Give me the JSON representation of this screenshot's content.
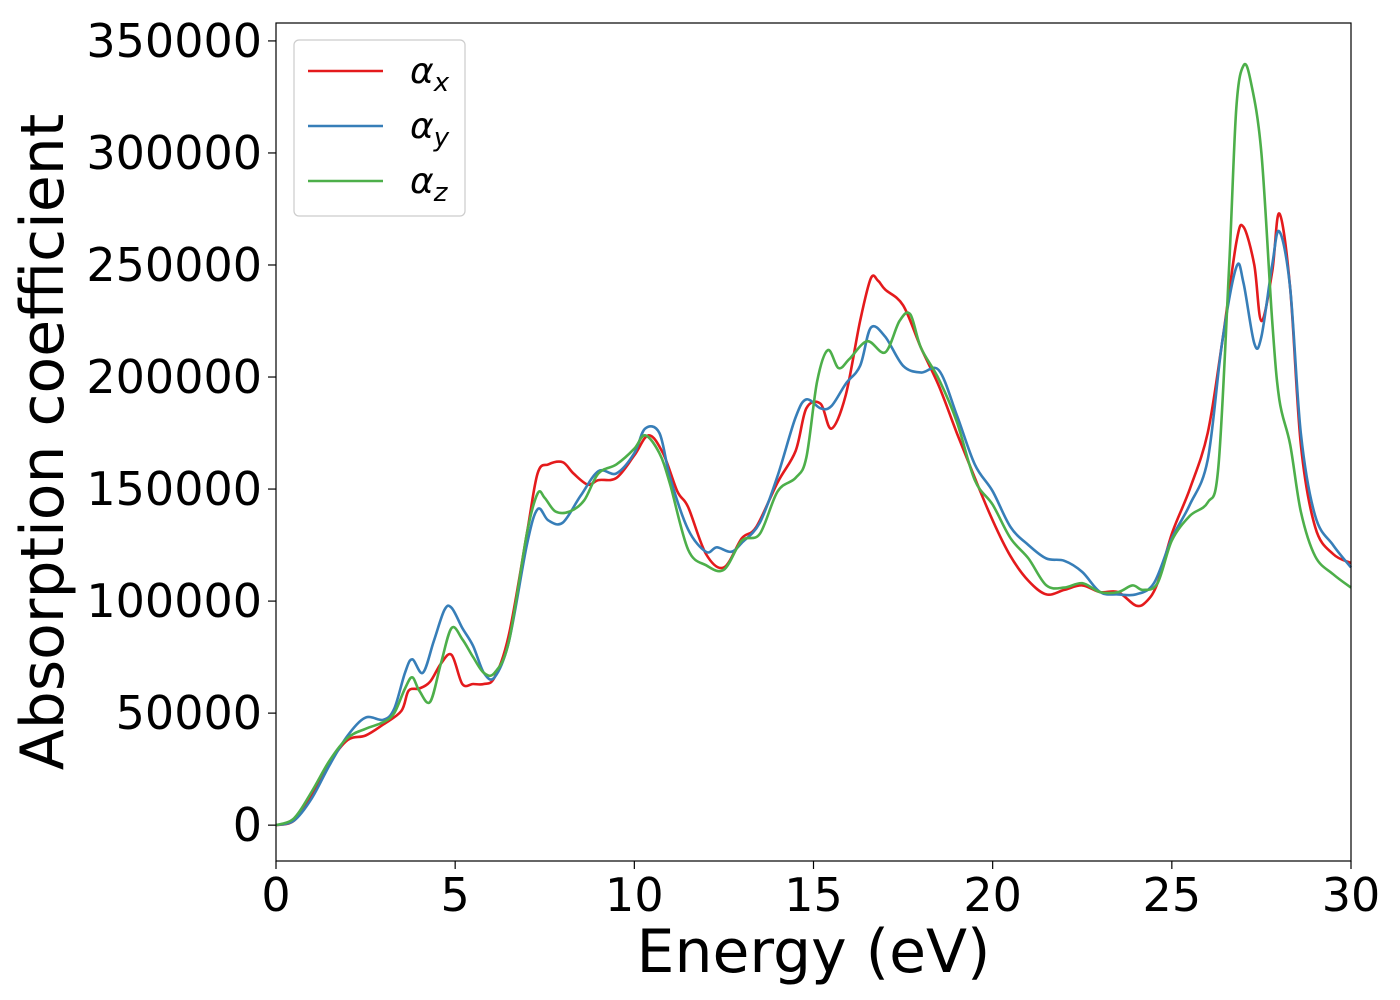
{
  "chart_data": {
    "type": "line",
    "xlabel": "Energy (eV)",
    "ylabel": "Absorption coefficient",
    "xlim": [
      0,
      30
    ],
    "ylim": [
      -16000,
      358000
    ],
    "xticks": [
      0,
      5,
      10,
      15,
      20,
      25,
      30
    ],
    "yticks": [
      0,
      50000,
      100000,
      150000,
      200000,
      250000,
      300000,
      350000
    ],
    "grid": false,
    "legend_position": "top-left",
    "series": [
      {
        "name": "α_x",
        "symbol": "α",
        "subscript": "x",
        "color": "#e41a1c",
        "x": [
          0,
          0.5,
          1.0,
          1.5,
          2.0,
          2.5,
          3.0,
          3.5,
          3.7,
          4.0,
          4.3,
          4.6,
          4.9,
          5.2,
          5.5,
          5.8,
          6.1,
          6.5,
          7.0,
          7.3,
          7.6,
          8.0,
          8.3,
          8.7,
          9.0,
          9.5,
          10.0,
          10.4,
          10.8,
          11.2,
          11.5,
          12.0,
          12.5,
          13.0,
          13.4,
          14.0,
          14.5,
          14.8,
          15.2,
          15.5,
          15.9,
          16.3,
          16.6,
          16.8,
          17.0,
          17.5,
          18.0,
          18.5,
          19.0,
          19.5,
          20.0,
          20.5,
          21.0,
          21.5,
          22.0,
          22.5,
          23.0,
          23.5,
          24.0,
          24.3,
          24.6,
          25.0,
          25.5,
          26.0,
          26.4,
          26.8,
          27.0,
          27.3,
          27.5,
          27.8,
          28.0,
          28.3,
          28.6,
          29.0,
          29.5,
          30.0
        ],
        "y": [
          0,
          2000,
          13000,
          28000,
          38000,
          40000,
          45000,
          51000,
          60000,
          61000,
          64000,
          72000,
          76000,
          63000,
          63000,
          63000,
          66000,
          85000,
          130000,
          157000,
          161000,
          162000,
          157000,
          152000,
          154000,
          155000,
          165000,
          174000,
          166000,
          149000,
          142000,
          121000,
          115000,
          128000,
          133000,
          153000,
          167000,
          186000,
          188000,
          177000,
          192000,
          225000,
          244000,
          243000,
          239000,
          232000,
          213000,
          196000,
          175000,
          155000,
          136000,
          120000,
          109000,
          103000,
          105000,
          107000,
          104000,
          104000,
          98000,
          100000,
          108000,
          130000,
          150000,
          175000,
          215000,
          260000,
          267000,
          250000,
          225000,
          247000,
          273000,
          240000,
          170000,
          133000,
          121000,
          117000
        ]
      },
      {
        "name": "α_y",
        "symbol": "α",
        "subscript": "y",
        "color": "#377eb8",
        "x": [
          0,
          0.5,
          1.0,
          1.5,
          2.0,
          2.5,
          3.0,
          3.3,
          3.6,
          3.8,
          4.1,
          4.4,
          4.7,
          4.9,
          5.2,
          5.5,
          5.8,
          6.1,
          6.5,
          7.0,
          7.3,
          7.6,
          8.0,
          8.5,
          9.0,
          9.5,
          10.0,
          10.3,
          10.7,
          11.0,
          11.5,
          12.0,
          12.3,
          12.7,
          13.0,
          13.5,
          14.0,
          14.5,
          14.8,
          15.2,
          15.5,
          15.9,
          16.3,
          16.6,
          17.0,
          17.5,
          18.0,
          18.5,
          19.0,
          19.5,
          20.0,
          20.5,
          21.0,
          21.5,
          22.0,
          22.5,
          23.0,
          23.5,
          24.0,
          24.5,
          25.0,
          25.5,
          26.0,
          26.4,
          26.8,
          27.0,
          27.3,
          27.5,
          27.8,
          28.0,
          28.3,
          28.6,
          29.0,
          29.5,
          30.0
        ],
        "y": [
          0,
          2000,
          12000,
          27000,
          40000,
          48000,
          47000,
          52000,
          68000,
          74000,
          68000,
          82000,
          96000,
          97000,
          88000,
          80000,
          68000,
          66000,
          82000,
          125000,
          141000,
          136000,
          135000,
          147000,
          158000,
          157000,
          166000,
          177000,
          175000,
          155000,
          132000,
          122000,
          124000,
          122000,
          126000,
          135000,
          156000,
          182000,
          190000,
          186000,
          187000,
          197000,
          205000,
          222000,
          218000,
          205000,
          202000,
          203000,
          183000,
          161000,
          149000,
          133000,
          125000,
          119000,
          118000,
          113000,
          104000,
          103000,
          103000,
          108000,
          128000,
          143000,
          163000,
          215000,
          249000,
          242000,
          215000,
          218000,
          250000,
          265000,
          240000,
          175000,
          138000,
          125000,
          115000
        ]
      },
      {
        "name": "α_z",
        "symbol": "α",
        "subscript": "z",
        "color": "#4daf4a",
        "x": [
          0,
          0.5,
          1.0,
          1.5,
          2.0,
          2.5,
          3.0,
          3.3,
          3.6,
          3.8,
          4.0,
          4.3,
          4.6,
          4.9,
          5.2,
          5.5,
          5.8,
          6.1,
          6.5,
          7.0,
          7.3,
          7.5,
          7.8,
          8.2,
          8.6,
          9.0,
          9.5,
          10.0,
          10.3,
          10.7,
          11.0,
          11.5,
          12.0,
          12.5,
          13.0,
          13.5,
          14.0,
          14.5,
          14.8,
          15.1,
          15.4,
          15.7,
          16.0,
          16.5,
          17.0,
          17.4,
          17.7,
          18.0,
          18.5,
          19.0,
          19.5,
          20.0,
          20.5,
          21.0,
          21.5,
          22.0,
          22.5,
          23.0,
          23.5,
          23.9,
          24.2,
          24.6,
          25.0,
          25.5,
          26.0,
          26.3,
          26.6,
          26.8,
          27.0,
          27.2,
          27.5,
          27.8,
          28.0,
          28.3,
          28.6,
          29.0,
          29.5,
          30.0
        ],
        "y": [
          0,
          3000,
          15000,
          29000,
          39000,
          43000,
          46000,
          50000,
          61000,
          66000,
          60000,
          55000,
          72000,
          88000,
          83000,
          75000,
          68000,
          68000,
          82000,
          130000,
          148000,
          146000,
          140000,
          140000,
          145000,
          157000,
          161000,
          168000,
          174000,
          166000,
          152000,
          123000,
          116000,
          114000,
          127000,
          130000,
          149000,
          155000,
          164000,
          198000,
          212000,
          204000,
          208000,
          216000,
          211000,
          225000,
          228000,
          213000,
          199000,
          180000,
          154000,
          143000,
          128000,
          119000,
          107000,
          106000,
          108000,
          104000,
          104000,
          107000,
          105000,
          108000,
          127000,
          138000,
          144000,
          160000,
          250000,
          320000,
          339000,
          332000,
          300000,
          225000,
          190000,
          170000,
          140000,
          120000,
          112000,
          106000
        ]
      }
    ]
  }
}
